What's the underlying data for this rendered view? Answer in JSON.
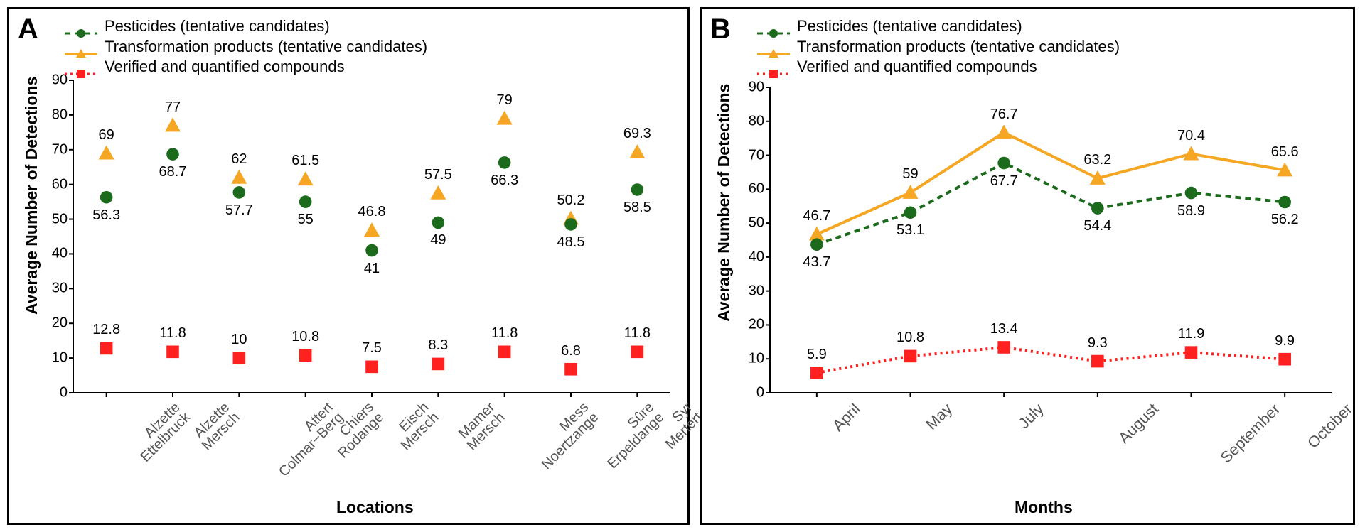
{
  "colors": {
    "pesticides": "#1c6b1c",
    "transformation": "#f5a623",
    "verified": "#ff2020",
    "axis": "#000000",
    "tick_text": "#555555",
    "background": "#ffffff"
  },
  "legend": {
    "pesticides": "Pesticides (tentative candidates)",
    "transformation": "Transformation products (tentative candidates)",
    "verified": "Verified and quantified compounds"
  },
  "panelA": {
    "letter": "A",
    "ylabel": "Average Number of Detections",
    "xlabel": "Locations",
    "ylim": [
      0,
      90
    ],
    "ytick_step": 10,
    "categories": [
      "Alzette\nEttelbruck",
      "Alzette\nMersch",
      "Attert\nColmar−Berg",
      "Chiers\nRodange",
      "Eisch\nMersch",
      "Mamer\nMersch",
      "Mess\nNoertzange",
      "Sûre\nErpeldange",
      "Syr\nMertert"
    ],
    "series": {
      "pesticides": {
        "values": [
          56.3,
          68.7,
          57.7,
          55.0,
          41.0,
          49.0,
          66.3,
          48.5,
          58.5
        ],
        "label_pos": [
          "below",
          "below",
          "below",
          "below",
          "below",
          "below",
          "below",
          "below",
          "below"
        ]
      },
      "transformation": {
        "values": [
          69.0,
          77.0,
          62.0,
          61.5,
          46.8,
          57.5,
          79.0,
          50.2,
          69.3
        ],
        "label_pos": [
          "above",
          "above",
          "above",
          "above",
          "above",
          "above",
          "above",
          "above",
          "above"
        ]
      },
      "verified": {
        "values": [
          12.8,
          11.8,
          10.0,
          10.8,
          7.5,
          8.3,
          11.8,
          6.8,
          11.8
        ],
        "label_pos": [
          "above",
          "above",
          "above",
          "above",
          "above",
          "above",
          "above",
          "above",
          "above"
        ]
      }
    },
    "marker_size": 11,
    "font": {
      "label_size": 20,
      "axis_title_size": 23,
      "tick_size": 20
    }
  },
  "panelB": {
    "letter": "B",
    "ylabel": "Average Number of Detections",
    "xlabel": "Months",
    "ylim": [
      0,
      90
    ],
    "ytick_step": 10,
    "categories": [
      "April",
      "May",
      "July",
      "August",
      "September",
      "October"
    ],
    "series": {
      "pesticides": {
        "values": [
          43.7,
          53.1,
          67.7,
          54.4,
          58.9,
          56.2
        ],
        "label_pos": [
          "below",
          "below",
          "below",
          "below",
          "below",
          "below"
        ],
        "dash": "8,6",
        "line_width": 4
      },
      "transformation": {
        "values": [
          46.7,
          59.0,
          76.7,
          63.2,
          70.4,
          65.6
        ],
        "label_pos": [
          "above",
          "above",
          "above",
          "above",
          "above",
          "above"
        ],
        "dash": "",
        "line_width": 4
      },
      "verified": {
        "values": [
          5.9,
          10.8,
          13.4,
          9.3,
          11.9,
          9.9
        ],
        "label_pos": [
          "above",
          "above",
          "above",
          "above",
          "above",
          "above"
        ],
        "dash": "3,5",
        "line_width": 4
      }
    },
    "marker_size": 11,
    "font": {
      "label_size": 20,
      "axis_title_size": 23,
      "tick_size": 22
    }
  }
}
